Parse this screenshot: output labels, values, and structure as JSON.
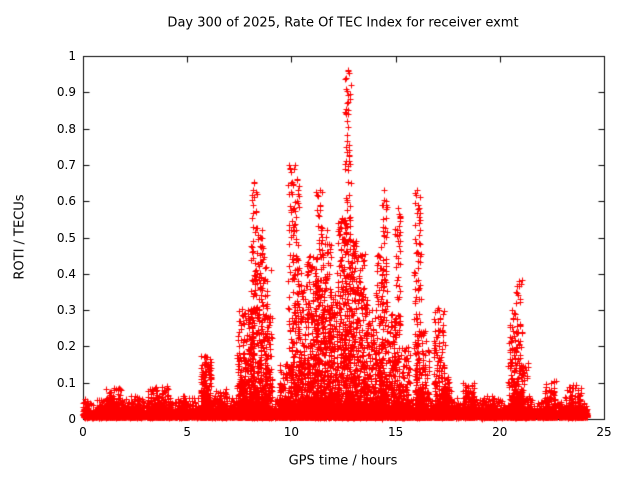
{
  "chart_data": {
    "type": "scatter",
    "title": "Day 300 of 2025, Rate Of TEC Index for receiver exmt",
    "xlabel": "GPS time / hours",
    "ylabel": "ROTI / TECUs",
    "xlim": [
      0,
      25
    ],
    "ylim": [
      0,
      1
    ],
    "xticks": [
      0,
      5,
      10,
      15,
      20,
      25
    ],
    "xtick_labels": [
      "0",
      "5",
      "10",
      "15",
      "20",
      "25"
    ],
    "yticks": [
      0,
      0.1,
      0.2,
      0.3,
      0.4,
      0.5,
      0.6,
      0.7,
      0.8,
      0.9,
      1
    ],
    "ytick_labels": [
      "0",
      "0.1",
      "0.2",
      "0.3",
      "0.4",
      "0.5",
      "0.6",
      "0.7",
      "0.8",
      "0.9",
      "1"
    ],
    "grid": false,
    "legend": "none",
    "marker": "plus",
    "color": "#ff0000",
    "axis_color": "#000000",
    "seed": 7,
    "cluster_power": 2.6,
    "baseline": {
      "count": 6000,
      "xmin": 0,
      "xmax": 24.2,
      "base": 0.004,
      "scale": 0.014,
      "max": 0.06
    },
    "clusters": [
      [
        1.5,
        0.4,
        0.08,
        150
      ],
      [
        2.5,
        0.3,
        0.06,
        80
      ],
      [
        3.6,
        0.5,
        0.09,
        200
      ],
      [
        4.8,
        0.2,
        0.06,
        60
      ],
      [
        5.9,
        0.25,
        0.17,
        250
      ],
      [
        6.6,
        0.3,
        0.08,
        100
      ],
      [
        7.8,
        0.4,
        0.3,
        400
      ],
      [
        8.2,
        0.15,
        0.65,
        200
      ],
      [
        8.6,
        0.25,
        0.52,
        300
      ],
      [
        8.9,
        0.2,
        0.28,
        150
      ],
      [
        9.6,
        0.2,
        0.15,
        120
      ],
      [
        10.1,
        0.25,
        0.7,
        300
      ],
      [
        10.5,
        0.2,
        0.4,
        200
      ],
      [
        11.0,
        0.3,
        0.45,
        350
      ],
      [
        11.35,
        0.15,
        0.63,
        200
      ],
      [
        11.7,
        0.2,
        0.5,
        250
      ],
      [
        12.0,
        0.2,
        0.35,
        200
      ],
      [
        12.4,
        0.2,
        0.55,
        250
      ],
      [
        12.7,
        0.15,
        0.96,
        250
      ],
      [
        13.0,
        0.2,
        0.5,
        250
      ],
      [
        13.4,
        0.25,
        0.45,
        250
      ],
      [
        13.8,
        0.2,
        0.3,
        150
      ],
      [
        14.2,
        0.2,
        0.45,
        200
      ],
      [
        14.45,
        0.15,
        0.63,
        150
      ],
      [
        14.8,
        0.2,
        0.3,
        150
      ],
      [
        15.1,
        0.15,
        0.58,
        150
      ],
      [
        15.5,
        0.2,
        0.2,
        100
      ],
      [
        16.05,
        0.15,
        0.63,
        180
      ],
      [
        16.4,
        0.2,
        0.25,
        120
      ],
      [
        17.1,
        0.25,
        0.3,
        200
      ],
      [
        17.5,
        0.2,
        0.12,
        100
      ],
      [
        18.5,
        0.3,
        0.1,
        120
      ],
      [
        19.5,
        0.3,
        0.06,
        80
      ],
      [
        20.6,
        0.2,
        0.3,
        150
      ],
      [
        20.9,
        0.15,
        0.38,
        120
      ],
      [
        21.2,
        0.2,
        0.15,
        80
      ],
      [
        22.4,
        0.3,
        0.1,
        120
      ],
      [
        23.5,
        0.4,
        0.09,
        150
      ]
    ],
    "peaks": [
      [
        12.72,
        0.96
      ],
      [
        12.7,
        0.85
      ],
      [
        12.62,
        0.75
      ],
      [
        12.78,
        0.71
      ],
      [
        12.85,
        0.65
      ],
      [
        10.15,
        0.7
      ],
      [
        10.25,
        0.66
      ],
      [
        10.3,
        0.62
      ],
      [
        8.2,
        0.65
      ],
      [
        8.17,
        0.63
      ],
      [
        11.35,
        0.63
      ],
      [
        14.45,
        0.63
      ],
      [
        16.05,
        0.63
      ],
      [
        16.1,
        0.58
      ],
      [
        8.6,
        0.52
      ],
      [
        15.1,
        0.58
      ],
      [
        15.05,
        0.52
      ],
      [
        12.45,
        0.55
      ],
      [
        11.7,
        0.52
      ],
      [
        14.4,
        0.55
      ],
      [
        10.9,
        0.45
      ],
      [
        13.35,
        0.45
      ],
      [
        14.2,
        0.45
      ],
      [
        8.65,
        0.44
      ],
      [
        9.0,
        0.41
      ],
      [
        20.9,
        0.38
      ],
      [
        20.6,
        0.3
      ],
      [
        17.1,
        0.3
      ],
      [
        5.95,
        0.17
      ]
    ]
  }
}
